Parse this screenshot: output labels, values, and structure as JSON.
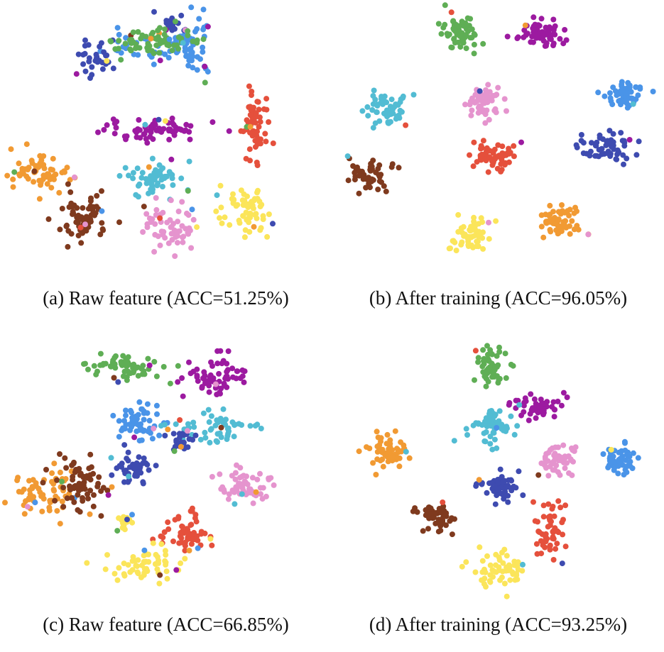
{
  "figure": {
    "panels": [
      {
        "id": "a",
        "caption": "(a) Raw feature (ACC=51.25%)"
      },
      {
        "id": "b",
        "caption": "(b) After training (ACC=96.05%)"
      },
      {
        "id": "c",
        "caption": "(c) Raw feature (ACC=66.85%)"
      },
      {
        "id": "d",
        "caption": "(d) After training (ACC=93.25%)"
      }
    ]
  },
  "colors": {
    "green": "#5fae55",
    "purple": "#9c1aa0",
    "skyblue": "#4a94e8",
    "indigo": "#3e4bb0",
    "cyan": "#52bcd3",
    "pink": "#e594ce",
    "red": "#e5503c",
    "brown": "#7f3a1e",
    "orange": "#f19a33",
    "yellow": "#fbe55a"
  },
  "chart_data": [
    {
      "type": "scatter",
      "title": "(a) Raw feature (ACC=51.25%)",
      "accuracy": 51.25,
      "xlim": [
        0,
        100
      ],
      "ylim": [
        0,
        100
      ],
      "clusters": [
        {
          "color": "skyblue",
          "center": [
            58,
            15
          ],
          "spread": [
            3.5,
            7
          ],
          "count": 55
        },
        {
          "color": "skyblue",
          "center": [
            40,
            14
          ],
          "spread": [
            5,
            3
          ],
          "count": 30
        },
        {
          "color": "indigo",
          "center": [
            28,
            18
          ],
          "spread": [
            4,
            5
          ],
          "count": 30
        },
        {
          "color": "indigo",
          "center": [
            52,
            5
          ],
          "spread": [
            3,
            2.5
          ],
          "count": 20
        },
        {
          "color": "green",
          "center": [
            47,
            12
          ],
          "spread": [
            9,
            2.5
          ],
          "count": 60
        },
        {
          "color": "purple",
          "center": [
            46,
            46
          ],
          "spread": [
            10,
            3
          ],
          "count": 65
        },
        {
          "color": "red",
          "center": [
            79,
            45
          ],
          "spread": [
            2.5,
            8
          ],
          "count": 55
        },
        {
          "color": "cyan",
          "center": [
            46,
            65
          ],
          "spread": [
            6,
            4
          ],
          "count": 55
        },
        {
          "color": "pink",
          "center": [
            52,
            83
          ],
          "spread": [
            6,
            6
          ],
          "count": 55
        },
        {
          "color": "yellow",
          "center": [
            76,
            77
          ],
          "spread": [
            5,
            6
          ],
          "count": 60
        },
        {
          "color": "orange",
          "center": [
            11,
            62
          ],
          "spread": [
            6,
            4.5
          ],
          "count": 65
        },
        {
          "color": "brown",
          "center": [
            24,
            80
          ],
          "spread": [
            5,
            5.5
          ],
          "count": 65
        }
      ]
    },
    {
      "type": "scatter",
      "title": "(b) After training (ACC=96.05%)",
      "accuracy": 96.05,
      "xlim": [
        0,
        100
      ],
      "ylim": [
        0,
        100
      ],
      "clusters": [
        {
          "color": "green",
          "center": [
            38,
            9
          ],
          "spread": [
            3.5,
            4.5
          ],
          "count": 55
        },
        {
          "color": "purple",
          "center": [
            64,
            9
          ],
          "spread": [
            5,
            3.5
          ],
          "count": 60
        },
        {
          "color": "cyan",
          "center": [
            14,
            38
          ],
          "spread": [
            4.5,
            4
          ],
          "count": 55
        },
        {
          "color": "pink",
          "center": [
            45,
            35
          ],
          "spread": [
            4,
            4.5
          ],
          "count": 55
        },
        {
          "color": "skyblue",
          "center": [
            90,
            32
          ],
          "spread": [
            4.5,
            3.5
          ],
          "count": 55
        },
        {
          "color": "red",
          "center": [
            49,
            57
          ],
          "spread": [
            4.5,
            3.5
          ],
          "count": 60
        },
        {
          "color": "indigo",
          "center": [
            85,
            53
          ],
          "spread": [
            5,
            4
          ],
          "count": 55
        },
        {
          "color": "brown",
          "center": [
            8,
            63
          ],
          "spread": [
            5,
            3.5
          ],
          "count": 55
        },
        {
          "color": "yellow",
          "center": [
            40,
            86
          ],
          "spread": [
            4.5,
            4.5
          ],
          "count": 55
        },
        {
          "color": "orange",
          "center": [
            70,
            82
          ],
          "spread": [
            4.5,
            3.5
          ],
          "count": 55
        }
      ]
    },
    {
      "type": "scatter",
      "title": "(c) Raw feature (ACC=66.85%)",
      "accuracy": 66.85,
      "xlim": [
        0,
        100
      ],
      "ylim": [
        0,
        100
      ],
      "clusters": [
        {
          "color": "green",
          "center": [
            38,
            12
          ],
          "spread": [
            9,
            3
          ],
          "count": 60
        },
        {
          "color": "purple",
          "center": [
            66,
            16
          ],
          "spread": [
            7,
            4.5
          ],
          "count": 60
        },
        {
          "color": "skyblue",
          "center": [
            41,
            33
          ],
          "spread": [
            4.5,
            4.5
          ],
          "count": 55
        },
        {
          "color": "cyan",
          "center": [
            66,
            35
          ],
          "spread": [
            8,
            3.5
          ],
          "count": 55
        },
        {
          "color": "indigo",
          "center": [
            40,
            51
          ],
          "spread": [
            4,
            3.5
          ],
          "count": 45
        },
        {
          "color": "indigo",
          "center": [
            56,
            41
          ],
          "spread": [
            2.5,
            3
          ],
          "count": 20
        },
        {
          "color": "pink",
          "center": [
            75,
            57
          ],
          "spread": [
            6,
            4
          ],
          "count": 55
        },
        {
          "color": "orange",
          "center": [
            12,
            60
          ],
          "spread": [
            6,
            5
          ],
          "count": 65
        },
        {
          "color": "brown",
          "center": [
            22,
            56
          ],
          "spread": [
            5,
            7
          ],
          "count": 65
        },
        {
          "color": "red",
          "center": [
            56,
            76
          ],
          "spread": [
            5,
            5
          ],
          "count": 55
        },
        {
          "color": "yellow",
          "center": [
            44,
            87
          ],
          "spread": [
            7,
            4
          ],
          "count": 55
        },
        {
          "color": "yellow",
          "center": [
            37,
            71
          ],
          "spread": [
            1.5,
            2
          ],
          "count": 12
        }
      ]
    },
    {
      "type": "scatter",
      "title": "(d) After training (ACC=93.25%)",
      "accuracy": 93.25,
      "xlim": [
        0,
        100
      ],
      "ylim": [
        0,
        100
      ],
      "clusters": [
        {
          "color": "green",
          "center": [
            47,
            11
          ],
          "spread": [
            3.5,
            5
          ],
          "count": 55
        },
        {
          "color": "purple",
          "center": [
            64,
            27
          ],
          "spread": [
            5,
            2.5
          ],
          "count": 50
        },
        {
          "color": "cyan",
          "center": [
            48,
            35
          ],
          "spread": [
            4.5,
            4
          ],
          "count": 55
        },
        {
          "color": "pink",
          "center": [
            69,
            47
          ],
          "spread": [
            3.5,
            4
          ],
          "count": 55
        },
        {
          "color": "skyblue",
          "center": [
            89,
            48
          ],
          "spread": [
            3.5,
            4
          ],
          "count": 50
        },
        {
          "color": "orange",
          "center": [
            15,
            44
          ],
          "spread": [
            4,
            3.5
          ],
          "count": 55
        },
        {
          "color": "indigo",
          "center": [
            50,
            58
          ],
          "spread": [
            4.5,
            3.5
          ],
          "count": 55
        },
        {
          "color": "brown",
          "center": [
            30,
            69
          ],
          "spread": [
            3.5,
            4
          ],
          "count": 50
        },
        {
          "color": "red",
          "center": [
            66,
            74
          ],
          "spread": [
            3,
            7
          ],
          "count": 55
        },
        {
          "color": "yellow",
          "center": [
            50,
            90
          ],
          "spread": [
            5,
            4
          ],
          "count": 55
        }
      ]
    }
  ]
}
